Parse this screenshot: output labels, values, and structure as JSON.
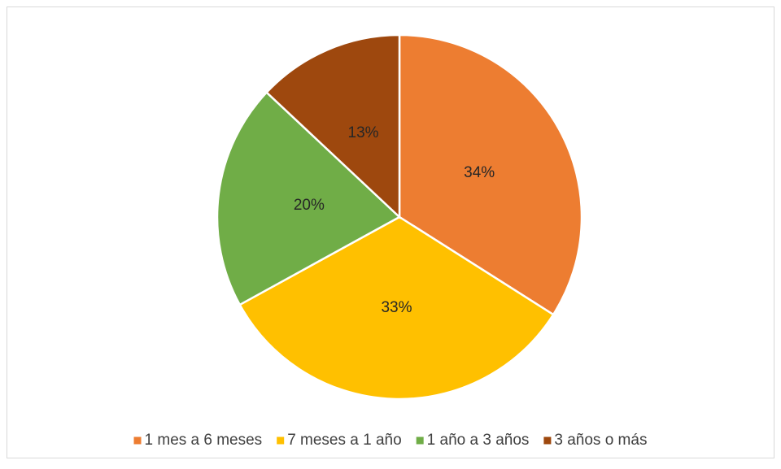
{
  "chart_data": {
    "type": "pie",
    "categories": [
      "1 mes a 6 meses",
      "7 meses a 1 año",
      "1 año a 3 años",
      "3 años o más"
    ],
    "values": [
      34,
      33,
      20,
      13
    ],
    "value_labels": [
      "34%",
      "33%",
      "20%",
      "13%"
    ],
    "colors": [
      "#ED7D31",
      "#FFC000",
      "#70AD47",
      "#9E480E"
    ],
    "legend": "bottom"
  }
}
